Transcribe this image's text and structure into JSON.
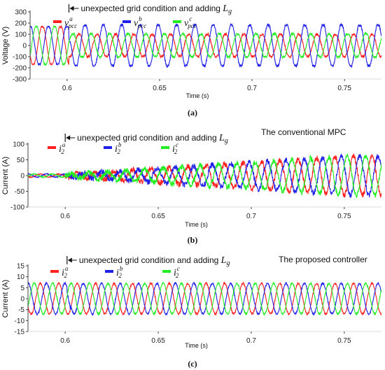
{
  "chart_data": [
    {
      "type": "line",
      "panel": "(a)",
      "title": "",
      "xlabel": "Time (s)",
      "ylabel": "Voltage (V)",
      "xlim": [
        0.58,
        0.77
      ],
      "ylim": [
        -300,
        300
      ],
      "xticks": [
        0.6,
        0.65,
        0.7,
        0.75
      ],
      "xtick_labels": [
        "0.6",
        "0.65",
        "0.7",
        "0.75"
      ],
      "yticks": [
        -300,
        -200,
        -100,
        0,
        100,
        200,
        300
      ],
      "ytick_labels": [
        "-300",
        "-200",
        "-100",
        "0",
        "100",
        "200",
        "300"
      ],
      "grid": false,
      "event_time": 0.601,
      "annotation": "unexpected grid condition and adding L",
      "annotation_sub": "g",
      "frequency_hz": 101,
      "series": [
        {
          "name": "v",
          "sup": "a",
          "sub": "pcc",
          "color": "#ff2020",
          "amp_before": 180,
          "amp_after": 105,
          "phase_deg": 0
        },
        {
          "name": "v",
          "sup": "b",
          "sub": "pcc",
          "color": "#2020e8",
          "amp_before": 180,
          "amp_after": 195,
          "phase_deg": -120
        },
        {
          "name": "v",
          "sup": "c",
          "sub": "pcc",
          "color": "#22ee22",
          "amp_before": 180,
          "amp_after": 110,
          "phase_deg": 120
        }
      ]
    },
    {
      "type": "line",
      "panel": "(b)",
      "title": "The conventional MPC",
      "xlabel": "Time (s)",
      "ylabel": "Current (A)",
      "xlim": [
        0.58,
        0.77
      ],
      "ylim": [
        -100,
        100
      ],
      "xticks": [
        0.6,
        0.65,
        0.7,
        0.75
      ],
      "xtick_labels": [
        "0.6",
        "0.65",
        "0.7",
        "0.75"
      ],
      "yticks": [
        -100,
        -50,
        0,
        50,
        100
      ],
      "ytick_labels": [
        "-100",
        "-50",
        "0",
        "50",
        "100"
      ],
      "grid": false,
      "event_time": 0.6,
      "annotation": "unexpected grid condition and adding L",
      "annotation_sub": "g",
      "frequency_hz": 101,
      "envelope": "growing from about 5 A before 0.6 s to about 60 A at 0.77 s",
      "series": [
        {
          "name": "i",
          "sup": "a",
          "sub": "2",
          "color": "#ff2020",
          "phase_deg": 0
        },
        {
          "name": "i",
          "sup": "b",
          "sub": "2",
          "color": "#2020e8",
          "phase_deg": -120
        },
        {
          "name": "i",
          "sup": "c",
          "sub": "2",
          "color": "#22ee22",
          "phase_deg": 120
        }
      ]
    },
    {
      "type": "line",
      "panel": "(c)",
      "title": "The proposed controller",
      "xlabel": "Time (s)",
      "ylabel": "Current (A)",
      "xlim": [
        0.58,
        0.77
      ],
      "ylim": [
        -15,
        15
      ],
      "xticks": [
        0.6,
        0.65,
        0.7,
        0.75
      ],
      "xtick_labels": [
        "0.6",
        "0.65",
        "0.7",
        "0.75"
      ],
      "yticks": [
        -15,
        -10,
        -5,
        0,
        5,
        10,
        15
      ],
      "ytick_labels": [
        "-15",
        "-10",
        "-5",
        "0",
        "5",
        "10",
        "15"
      ],
      "grid": false,
      "event_time": 0.601,
      "annotation": "unexpected grid condition and adding L",
      "annotation_sub": "g",
      "frequency_hz": 101,
      "amplitude": 7,
      "series": [
        {
          "name": "i",
          "sup": "a",
          "sub": "2",
          "color": "#ff2020",
          "phase_deg": 0
        },
        {
          "name": "i",
          "sup": "b",
          "sub": "2",
          "color": "#2020e8",
          "phase_deg": -120
        },
        {
          "name": "i",
          "sup": "c",
          "sub": "2",
          "color": "#22ee22",
          "phase_deg": 120
        }
      ]
    }
  ]
}
